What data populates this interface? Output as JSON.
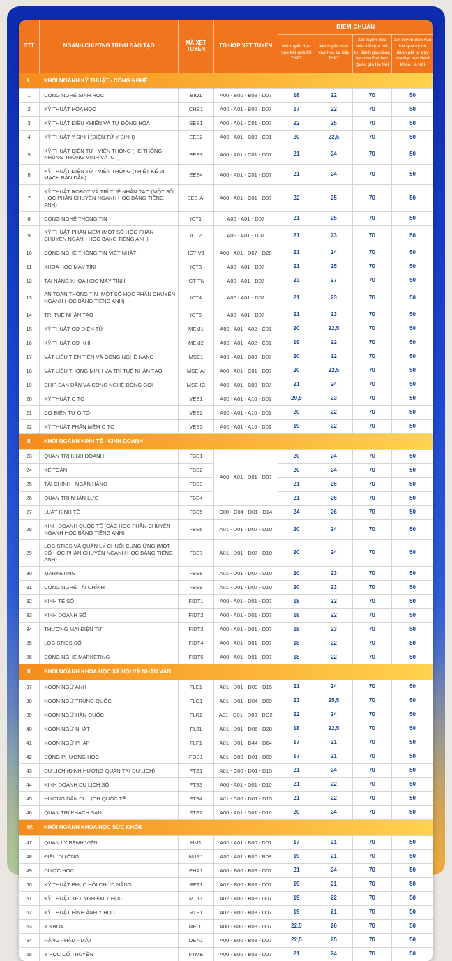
{
  "table": {
    "columns": {
      "stt": "STT",
      "nganh": "NGÀNH/CHƯƠNG TRÌNH ĐÀO TẠO",
      "ma": "MÃ XÉT TUYỂN",
      "to_hop": "TỔ HỢP XÉT TUYỂN",
      "diem_chuan": "ĐIỂM CHUẨN",
      "sub": [
        "Xét tuyển dựa vào kết quả thi THPT",
        "Xét tuyển dựa vào học bạ bậc THPT",
        "Xét tuyển dựa vào kết quả bài thi đánh giá năng lực của Đại học Quốc gia Hà Nội",
        "Xét tuyển dựa vào kết quả kỳ thi đánh giá tư duy của Đại học Bách khoa Hà Nội"
      ]
    },
    "sections": [
      {
        "numeral": "I.",
        "title": "KHỐI NGÀNH KỸ THUẬT - CÔNG NGHỆ",
        "rows": [
          {
            "stt": "1",
            "name": "CÔNG NGHỆ SINH HỌC",
            "code": "BIO1",
            "combo": "A00 - B00 - B08 - D07",
            "scores": [
              "18",
              "22",
              "70",
              "50"
            ]
          },
          {
            "stt": "2",
            "name": "KỸ THUẬT HÓA HỌC",
            "code": "CHE1",
            "combo": "A00 - A01 - B00 - D07",
            "scores": [
              "17",
              "22",
              "70",
              "50"
            ]
          },
          {
            "stt": "3",
            "name": "KỸ THUẬT ĐIỀU KHIỂN VÀ TỰ ĐỘNG HÓA",
            "code": "EEE1",
            "combo": "A00 - A01 - C01 - D07",
            "scores": [
              "22",
              "25",
              "70",
              "50"
            ]
          },
          {
            "stt": "4",
            "name": "KỸ THUẬT Y SINH (ĐIỆN TỬ Y SINH)",
            "code": "EEE2",
            "combo": "A00 - A01 - B00 - C01",
            "scores": [
              "20",
              "22,5",
              "70",
              "50"
            ]
          },
          {
            "stt": "5",
            "name": "KỸ THUẬT ĐIỆN TỬ - VIỄN THÔNG (HỆ THỐNG NHÚNG THÔNG MINH VÀ IOT)",
            "code": "EEE3",
            "combo": "A00 - A01 - C01 - D07",
            "scores": [
              "21",
              "24",
              "70",
              "50"
            ]
          },
          {
            "stt": "6",
            "name": "KỸ THUẬT ĐIỆN TỬ - VIỄN THÔNG (THIẾT KẾ VI MẠCH BÁN DẪN)",
            "code": "EEE4",
            "combo": "A00 - A01 - C01 - D07",
            "scores": [
              "21",
              "24",
              "70",
              "50"
            ]
          },
          {
            "stt": "7",
            "name": "KỸ THUẬT ROBOT VÀ TRÍ TUỆ NHÂN TẠO (MỘT SỐ HỌC PHẦN CHUYÊN NGÀNH HỌC BẰNG TIẾNG ANH)",
            "code": "EEE-AI",
            "combo": "A00 - A01 - C01 - D07",
            "scores": [
              "22",
              "25",
              "70",
              "50"
            ]
          },
          {
            "stt": "8",
            "name": "CÔNG NGHỆ THÔNG TIN",
            "code": "ICT1",
            "combo": "A00 - A01 - D07",
            "scores": [
              "21",
              "25",
              "70",
              "50"
            ]
          },
          {
            "stt": "9",
            "name": "KỸ THUẬT PHẦN MỀM (MỘT SỐ HỌC PHẦN CHUYÊN NGÀNH HỌC BẰNG TIẾNG ANH)",
            "code": "ICT2",
            "combo": "A00 - A01 - D07",
            "scores": [
              "21",
              "23",
              "70",
              "50"
            ]
          },
          {
            "stt": "10",
            "name": "CÔNG NGHỆ THÔNG TIN VIỆT NHẬT",
            "code": "ICT-VJ",
            "combo": "A00 - A01 - D07 - D28",
            "scores": [
              "21",
              "24",
              "70",
              "50"
            ]
          },
          {
            "stt": "11",
            "name": "KHOA HỌC MÁY TÍNH",
            "code": "ICT3",
            "combo": "A00 - A01 - D07",
            "scores": [
              "21",
              "25",
              "70",
              "50"
            ]
          },
          {
            "stt": "12",
            "name": "TÀI NĂNG KHOA HỌC MÁY TÍNH",
            "code": "ICT-TN",
            "combo": "A00 - A01 - D07",
            "scores": [
              "23",
              "27",
              "70",
              "50"
            ]
          },
          {
            "stt": "13",
            "name": "AN TOÀN THÔNG TIN (MỘT SỐ HỌC PHẦN CHUYÊN NGÀNH HỌC BẰNG TIẾNG ANH)",
            "code": "ICT4",
            "combo": "A00 - A01 - D07",
            "scores": [
              "21",
              "23",
              "70",
              "50"
            ]
          },
          {
            "stt": "14",
            "name": "TRÍ TUỆ NHÂN TẠO",
            "code": "ICT5",
            "combo": "A00 - A01 - D07",
            "scores": [
              "21",
              "23",
              "70",
              "50"
            ]
          },
          {
            "stt": "15",
            "name": "KỸ THUẬT CƠ ĐIỆN TỬ",
            "code": "MEM1",
            "combo": "A00 - A01 - A02 - C01",
            "scores": [
              "20",
              "22,5",
              "70",
              "50"
            ]
          },
          {
            "stt": "16",
            "name": "KỸ THUẬT CƠ KHÍ",
            "code": "MEM2",
            "combo": "A00 - A01 - A02 - C01",
            "scores": [
              "19",
              "22",
              "70",
              "50"
            ]
          },
          {
            "stt": "17",
            "name": "VẬT LIỆU TIÊN TIẾN VÀ CÔNG NGHỆ NANO",
            "code": "MSE1",
            "combo": "A00 - A01 - B00 - D07",
            "scores": [
              "20",
              "22",
              "70",
              "50"
            ]
          },
          {
            "stt": "18",
            "name": "VẬT LIỆU THÔNG MINH VÀ TRÍ TUỆ NHÂN TẠO",
            "code": "MSE-AI",
            "combo": "A00 - A01 - C01 - D07",
            "scores": [
              "20",
              "22,5",
              "70",
              "50"
            ]
          },
          {
            "stt": "19",
            "name": "CHIP BÁN DẪN VÀ CÔNG NGHỆ ĐÓNG GÓI",
            "code": "MSE-IC",
            "combo": "A00 - A01 - B00 - D07",
            "scores": [
              "21",
              "24",
              "70",
              "50"
            ]
          },
          {
            "stt": "20",
            "name": "KỸ THUẬT Ô TÔ",
            "code": "VEE1",
            "combo": "A00 - A01 - A10 - D01",
            "scores": [
              "20,5",
              "23",
              "70",
              "50"
            ]
          },
          {
            "stt": "21",
            "name": "CƠ ĐIỆN TỬ Ô TÔ",
            "code": "VEE2",
            "combo": "A00 - A01 - A10 - D01",
            "scores": [
              "20",
              "22",
              "70",
              "50"
            ]
          },
          {
            "stt": "22",
            "name": "KỸ THUẬT PHẦN MỀM Ô TÔ",
            "code": "VEE3",
            "combo": "A00 - A01 - A10 - D01",
            "scores": [
              "19",
              "22",
              "70",
              "50"
            ]
          }
        ]
      },
      {
        "numeral": "II.",
        "title": "KHỐI NGÀNH KINH TẾ - KINH DOANH",
        "rows": [
          {
            "stt": "23",
            "name": "QUẢN TRỊ KINH DOANH",
            "code": "FBE1",
            "combo": "A00 - A01 - D01 - D07",
            "combo_span": 4,
            "scores": [
              "20",
              "24",
              "70",
              "50"
            ]
          },
          {
            "stt": "24",
            "name": "KẾ TOÁN",
            "code": "FBE2",
            "combo": null,
            "scores": [
              "20",
              "24",
              "70",
              "50"
            ]
          },
          {
            "stt": "25",
            "name": "TÀI CHÍNH - NGÂN HÀNG",
            "code": "FBE3",
            "combo": null,
            "scores": [
              "21",
              "26",
              "70",
              "50"
            ]
          },
          {
            "stt": "26",
            "name": "QUẢN TRỊ NHÂN LỰC",
            "code": "FBE4",
            "combo": null,
            "scores": [
              "21",
              "26",
              "70",
              "50"
            ]
          },
          {
            "stt": "27",
            "name": "LUẬT KINH TẾ",
            "code": "FBE5",
            "combo": "C00 - C04 - D01 - D14",
            "scores": [
              "24",
              "26",
              "70",
              "50"
            ]
          },
          {
            "stt": "28",
            "name": "KINH DOANH QUỐC TẾ (CÁC HỌC PHẦN CHUYÊN NGÀNH HỌC BẰNG TIẾNG ANH)",
            "code": "FBE6",
            "combo": "A01 - D01 - D07 - D10",
            "scores": [
              "20",
              "24",
              "70",
              "50"
            ]
          },
          {
            "stt": "29",
            "name": "LOGISTICS VÀ QUẢN LÝ CHUỖI CUNG ỨNG (MỘT SỐ HỌC PHẦN CHUYÊN NGÀNH HỌC BẰNG TIẾNG ANH)",
            "code": "FBE7",
            "combo": "A01 - D01 - D07 - D10",
            "scores": [
              "20",
              "24",
              "70",
              "50"
            ]
          },
          {
            "stt": "30",
            "name": "MARKETING",
            "code": "FBE8",
            "combo": "A01 - D01 - D07 - D10",
            "scores": [
              "20",
              "23",
              "70",
              "50"
            ]
          },
          {
            "stt": "31",
            "name": "CÔNG NGHỆ TÀI CHÍNH",
            "code": "FBE9",
            "combo": "A01 - D01 - D07 - D10",
            "scores": [
              "20",
              "23",
              "70",
              "50"
            ]
          },
          {
            "stt": "32",
            "name": "KINH TẾ SỐ",
            "code": "FIDT1",
            "combo": "A00 - A01 - D01 - D07",
            "scores": [
              "18",
              "22",
              "70",
              "50"
            ]
          },
          {
            "stt": "33",
            "name": "KINH DOANH SỐ",
            "code": "FIDT2",
            "combo": "A00 - A01 - D01 - D07",
            "scores": [
              "18",
              "22",
              "70",
              "50"
            ]
          },
          {
            "stt": "34",
            "name": "THƯƠNG MẠI ĐIỆN TỬ",
            "code": "FIDT3",
            "combo": "A00 - A01 - D01 - D07",
            "scores": [
              "18",
              "23",
              "70",
              "50"
            ]
          },
          {
            "stt": "35",
            "name": "LOGISTICS SỐ",
            "code": "FIDT4",
            "combo": "A00 - A01 - D01 - D07",
            "scores": [
              "18",
              "22",
              "70",
              "50"
            ]
          },
          {
            "stt": "36",
            "name": "CÔNG NGHỆ MARKETING",
            "code": "FIDT5",
            "combo": "A00 - A01 - D01 - D07",
            "scores": [
              "18",
              "22",
              "70",
              "50"
            ]
          }
        ]
      },
      {
        "numeral": "III.",
        "title": "KHỐI NGÀNH KHOA HỌC XÃ HỘI VÀ NHÂN VĂN",
        "rows": [
          {
            "stt": "37",
            "name": "NGÔN NGỮ ANH",
            "code": "FLE1",
            "combo": "A01 - D01 - D09 - D15",
            "scores": [
              "21",
              "24",
              "70",
              "50"
            ]
          },
          {
            "stt": "38",
            "name": "NGÔN NGỮ TRUNG QUỐC",
            "code": "FLC1",
            "combo": "A01 - D01 - D04 - D09",
            "scores": [
              "23",
              "25,5",
              "70",
              "50"
            ]
          },
          {
            "stt": "39",
            "name": "NGÔN NGỮ HÀN QUỐC",
            "code": "FLK1",
            "combo": "A01 - D01 - D09 - DD2",
            "scores": [
              "22",
              "24",
              "70",
              "50"
            ]
          },
          {
            "stt": "40",
            "name": "NGÔN NGỮ NHẬT",
            "code": "FLJ1",
            "combo": "A01 - D01 - D06 - D28",
            "scores": [
              "18",
              "22,5",
              "70",
              "50"
            ]
          },
          {
            "stt": "41",
            "name": "NGÔN NGỮ PHÁP",
            "code": "FLF1",
            "combo": "A01 - D01 - D44 - D64",
            "scores": [
              "17",
              "21",
              "70",
              "50"
            ]
          },
          {
            "stt": "42",
            "name": "ĐÔNG PHƯƠNG HỌC",
            "code": "FOS1",
            "combo": "A01 - C00 - D01 - D09",
            "scores": [
              "17",
              "21",
              "70",
              "50"
            ]
          },
          {
            "stt": "43",
            "name": "DU LỊCH (ĐỊNH HƯỚNG QUẢN TRỊ DU LỊCH)",
            "code": "FTS1",
            "combo": "A01 - C00 - D01 - D15",
            "scores": [
              "21",
              "24",
              "70",
              "50"
            ]
          },
          {
            "stt": "44",
            "name": "KINH DOANH DU LỊCH SỐ",
            "code": "FTS3",
            "combo": "A00 - A01 - D01 - D10",
            "scores": [
              "21",
              "22",
              "70",
              "50"
            ]
          },
          {
            "stt": "45",
            "name": "HƯỚNG DẪN DU LỊCH QUỐC TẾ",
            "code": "FTS4",
            "combo": "A01 - C00 - D01 - D15",
            "scores": [
              "21",
              "22",
              "70",
              "50"
            ]
          },
          {
            "stt": "46",
            "name": "QUẢN TRỊ KHÁCH SẠN",
            "code": "FTS2",
            "combo": "A00 - A01 - D01 - D10",
            "scores": [
              "20",
              "24",
              "70",
              "50"
            ]
          }
        ]
      },
      {
        "numeral": "IV.",
        "title": "KHỐI NGÀNH KHOA HỌC SỨC KHỎE",
        "rows": [
          {
            "stt": "47",
            "name": "QUẢN LÝ BỆNH VIỆN",
            "code": "HM1",
            "combo": "A00 - A01 - B00 - D01",
            "scores": [
              "17",
              "21",
              "70",
              "50"
            ]
          },
          {
            "stt": "48",
            "name": "ĐIỀU DƯỠNG",
            "code": "NUR1",
            "combo": "A00 - A01 - B00 - B08",
            "scores": [
              "19",
              "21",
              "70",
              "50"
            ]
          },
          {
            "stt": "49",
            "name": "DƯỢC HỌC",
            "code": "PHA1",
            "combo": "A00 - B00 - B08 - D07",
            "scores": [
              "21",
              "24",
              "70",
              "50"
            ]
          },
          {
            "stt": "50",
            "name": "KỸ THUẬT PHỤC HỒI CHỨC NĂNG",
            "code": "RET1",
            "combo": "A02 - B00 - B08 - D07",
            "scores": [
              "19",
              "21",
              "70",
              "50"
            ]
          },
          {
            "stt": "51",
            "name": "KỸ THUẬT XÉT NGHIỆM Y HỌC",
            "code": "MTT1",
            "combo": "A02 - B00 - B08 - D07",
            "scores": [
              "19",
              "22",
              "70",
              "50"
            ]
          },
          {
            "stt": "52",
            "name": "KỸ THUẬT HÌNH ẢNH Y HỌC",
            "code": "RTS1",
            "combo": "A02 - B00 - B08 - D07",
            "scores": [
              "19",
              "21",
              "70",
              "50"
            ]
          },
          {
            "stt": "53",
            "name": "Y KHOA",
            "code": "MED1",
            "combo": "A00 - B00 - B08 - D07",
            "scores": [
              "22,5",
              "26",
              "70",
              "50"
            ]
          },
          {
            "stt": "54",
            "name": "RĂNG - HÀM - MẶT",
            "code": "DEN1",
            "combo": "A00 - B00 - B08 - D07",
            "scores": [
              "22,5",
              "25",
              "70",
              "50"
            ]
          },
          {
            "stt": "55",
            "name": "Y HỌC CỔ TRUYỀN",
            "code": "FTME",
            "combo": "A00 - B00 - B08 - D07",
            "scores": [
              "21",
              "24",
              "70",
              "50"
            ]
          }
        ]
      }
    ]
  },
  "colors": {
    "header_orange": "#F1751C",
    "section_gradient_start": "#F68B1B",
    "section_gradient_end": "#FFD34F",
    "score_blue": "#1E4A9B",
    "card_blue": "#1C44CF",
    "card_teal": "#9ED2B2",
    "card_gold": "#F3AB3A",
    "page_bg": "#EAE7E3"
  }
}
